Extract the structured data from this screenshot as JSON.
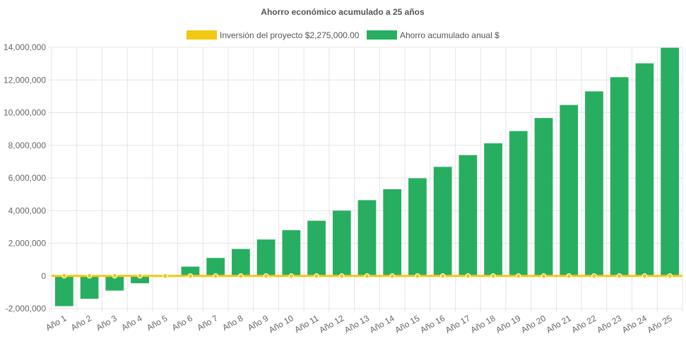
{
  "chart_data": {
    "type": "bar",
    "title": "Ahorro económico acumulado a 25 años",
    "categories": [
      "Año 1",
      "Año 2",
      "Año 3",
      "Año 4",
      "Año 5",
      "Año 6",
      "Año 7",
      "Año 8",
      "Año 9",
      "Año 10",
      "Año 11",
      "Año 12",
      "Año 13",
      "Año 14",
      "Año 15",
      "Año 16",
      "Año 17",
      "Año 18",
      "Año 19",
      "Año 20",
      "Año 21",
      "Año 22",
      "Año 23",
      "Año 24",
      "Año 25"
    ],
    "series": [
      {
        "name": "Inversión del proyecto $2,275,000.00",
        "type": "line",
        "color": "#f2c811",
        "values": [
          0,
          0,
          0,
          0,
          0,
          0,
          0,
          0,
          0,
          0,
          0,
          0,
          0,
          0,
          0,
          0,
          0,
          0,
          0,
          0,
          0,
          0,
          0,
          0,
          0
        ]
      },
      {
        "name": "Ahorro acumulado anual $",
        "type": "bar",
        "color": "#28ae60",
        "values": [
          -1850000,
          -1400000,
          -900000,
          -450000,
          50000,
          570000,
          1100000,
          1650000,
          2230000,
          2800000,
          3380000,
          4000000,
          4640000,
          5310000,
          5980000,
          6680000,
          7400000,
          8120000,
          8870000,
          9670000,
          10470000,
          11300000,
          12170000,
          13020000,
          13970000
        ]
      }
    ],
    "ylim": [
      -2000000,
      14000000
    ],
    "yticks": [
      -2000000,
      0,
      2000000,
      4000000,
      6000000,
      8000000,
      10000000,
      12000000,
      14000000
    ],
    "ytick_labels": [
      "-2,000,000",
      "0",
      "2,000,000",
      "4,000,000",
      "6,000,000",
      "8,000,000",
      "10,000,000",
      "12,000,000",
      "14,000,000"
    ],
    "xlabel": "",
    "ylabel": "",
    "grid": true,
    "legend": "top"
  }
}
